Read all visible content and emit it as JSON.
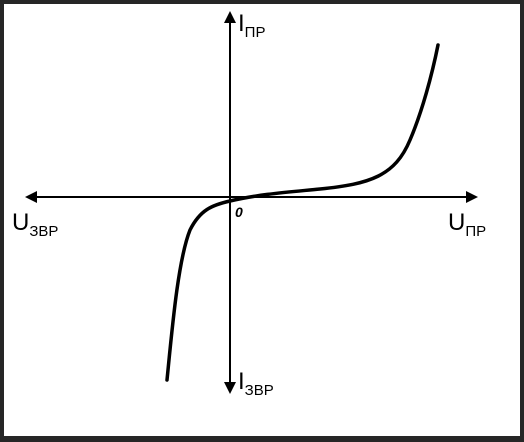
{
  "diagram": {
    "axis_labels": {
      "y_positive": {
        "main": "I",
        "sub": "ПР"
      },
      "y_negative": {
        "main": "I",
        "sub": "ЗВР"
      },
      "x_positive": {
        "main": "U",
        "sub": "ПР"
      },
      "x_negative": {
        "main": "U",
        "sub": "ЗВР"
      }
    },
    "origin_label": "0",
    "colors": {
      "frame": "#262626",
      "background": "#ffffff",
      "ink": "#000000"
    }
  }
}
